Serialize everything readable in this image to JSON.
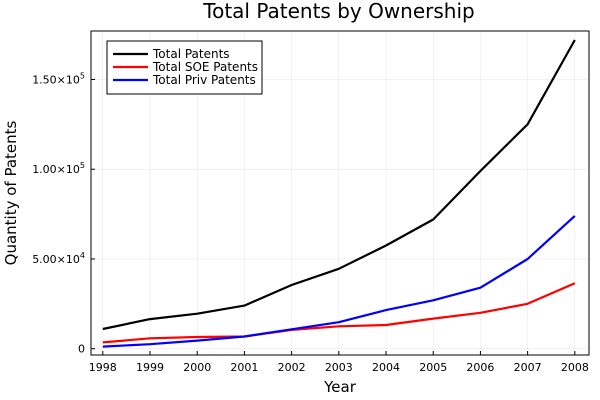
{
  "chart_data": {
    "type": "line",
    "title": "Total Patents by Ownership",
    "xlabel": "Year",
    "ylabel": "Quantity of Patents",
    "x": [
      1998,
      1999,
      2000,
      2001,
      2002,
      2003,
      2004,
      2005,
      2006,
      2007,
      2008
    ],
    "x_tick_labels": [
      "1998",
      "1999",
      "2000",
      "2001",
      "2002",
      "2003",
      "2004",
      "2005",
      "2006",
      "2007",
      "2008"
    ],
    "y_ticks": [
      0,
      50000,
      100000,
      150000
    ],
    "y_tick_labels": [
      {
        "base": "0",
        "exp": ""
      },
      {
        "base": "5.00×10",
        "exp": "4"
      },
      {
        "base": "1.00×10",
        "exp": "5"
      },
      {
        "base": "1.50×10",
        "exp": "5"
      }
    ],
    "xlim": [
      1997.75,
      2008.3
    ],
    "ylim": [
      -3500,
      177000
    ],
    "grid": true,
    "legend_position": "top-left",
    "series": [
      {
        "name": "Total Patents",
        "color": "#000000",
        "values": [
          11000,
          16500,
          19500,
          24000,
          35500,
          44500,
          57500,
          72000,
          99000,
          125000,
          172000
        ]
      },
      {
        "name": "Total SOE Patents",
        "color": "#ff0000",
        "values": [
          3500,
          5800,
          6500,
          6800,
          10500,
          12500,
          13200,
          16800,
          20000,
          25000,
          36500
        ]
      },
      {
        "name": "Total Priv Patents",
        "color": "#0000ff",
        "values": [
          1200,
          2500,
          4500,
          6800,
          10800,
          14800,
          21500,
          27000,
          34000,
          50000,
          74000
        ]
      }
    ]
  }
}
